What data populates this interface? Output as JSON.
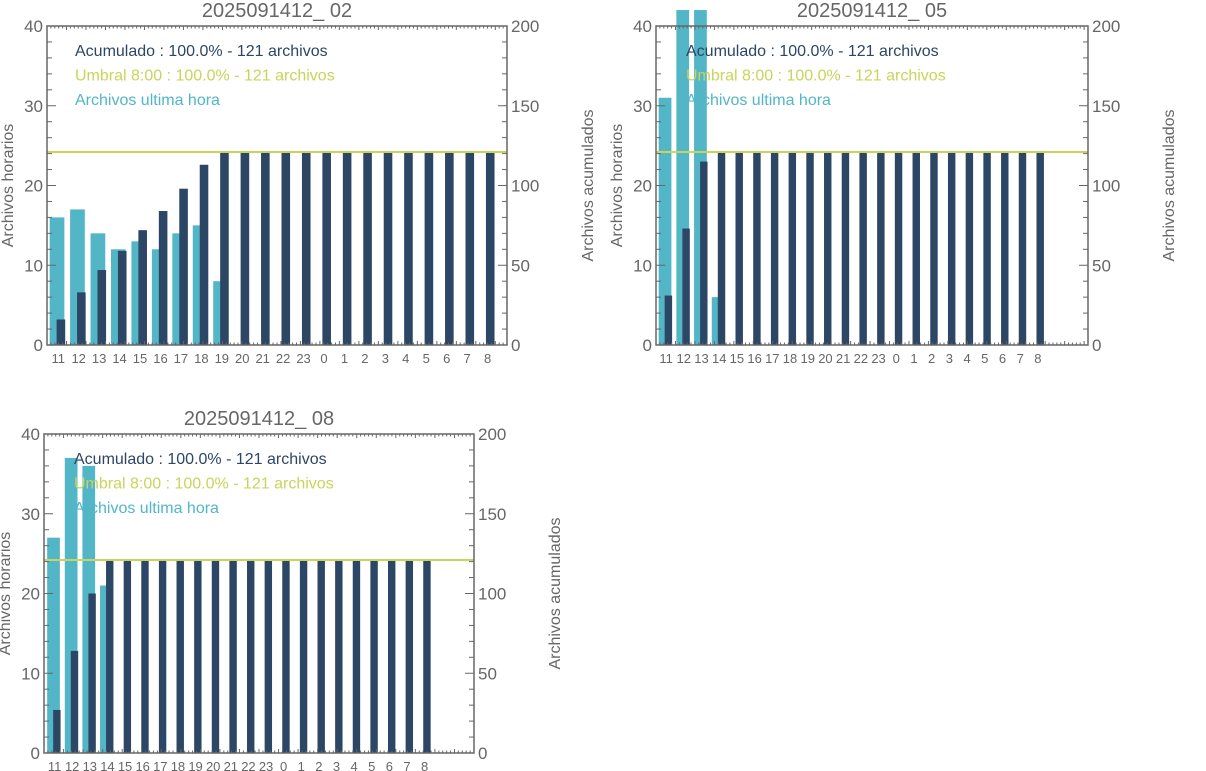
{
  "colors": {
    "cumulative": "#2c4665",
    "hourly": "#52b6c6",
    "threshold": "#c8d45a",
    "axis": "#666666"
  },
  "chart_data": [
    {
      "type": "bar",
      "title": "2025091412_ 02",
      "ylabel": "Archivos horarios",
      "y2label": "Archivos acumulados",
      "ylim": [
        0,
        40
      ],
      "y2lim": [
        0,
        200
      ],
      "yticks": [
        0,
        10,
        20,
        30,
        40
      ],
      "y2ticks": [
        0,
        50,
        100,
        150,
        200
      ],
      "categories": [
        "11",
        "12",
        "13",
        "14",
        "15",
        "16",
        "17",
        "18",
        "19",
        "20",
        "21",
        "22",
        "23",
        "0",
        "1",
        "2",
        "3",
        "4",
        "5",
        "6",
        "7",
        "8"
      ],
      "hourly": [
        16,
        17,
        14,
        12,
        13,
        12,
        14,
        15,
        8,
        0,
        0,
        0,
        0,
        0,
        0,
        0,
        0,
        0,
        0,
        0,
        0,
        0
      ],
      "cumulative": [
        16,
        33,
        47,
        59,
        72,
        84,
        98,
        113,
        121,
        121,
        121,
        121,
        121,
        121,
        121,
        121,
        121,
        121,
        121,
        121,
        121,
        121
      ],
      "threshold": 121,
      "legend": [
        "Acumulado : 100.0% - 121 archivos",
        "Umbral 8:00 : 100.0% - 121 archivos",
        "Archivos ultima hora"
      ],
      "legend_placement": "top-left"
    },
    {
      "type": "bar",
      "title": "2025091412_ 05",
      "ylabel": "Archivos horarios",
      "y2label": "Archivos acumulados",
      "ylim": [
        0,
        40
      ],
      "y2lim": [
        0,
        200
      ],
      "yticks": [
        0,
        10,
        20,
        30,
        40
      ],
      "y2ticks": [
        0,
        50,
        100,
        150,
        200
      ],
      "categories": [
        "11",
        "12",
        "13",
        "14",
        "15",
        "16",
        "17",
        "18",
        "19",
        "20",
        "21",
        "22",
        "23",
        "0",
        "1",
        "2",
        "3",
        "4",
        "5",
        "6",
        "7",
        "8"
      ],
      "hourly": [
        31,
        42,
        42,
        6,
        0,
        0,
        0,
        0,
        0,
        0,
        0,
        0,
        0,
        0,
        0,
        0,
        0,
        0,
        0,
        0,
        0,
        0
      ],
      "cumulative": [
        31,
        73,
        115,
        121,
        121,
        121,
        121,
        121,
        121,
        121,
        121,
        121,
        121,
        121,
        121,
        121,
        121,
        121,
        121,
        121,
        121,
        121
      ],
      "threshold": 121,
      "legend": [
        "Acumulado : 100.0% - 121 archivos",
        "Umbral 8:00 : 100.0% - 121 archivos",
        "Archivos ultima hora"
      ],
      "legend_placement": "top-left"
    },
    {
      "type": "bar",
      "title": "2025091412_ 08",
      "ylabel": "Archivos horarios",
      "y2label": "Archivos acumulados",
      "ylim": [
        0,
        40
      ],
      "y2lim": [
        0,
        200
      ],
      "yticks": [
        0,
        10,
        20,
        30,
        40
      ],
      "y2ticks": [
        0,
        50,
        100,
        150,
        200
      ],
      "categories": [
        "11",
        "12",
        "13",
        "14",
        "15",
        "16",
        "17",
        "18",
        "19",
        "20",
        "21",
        "22",
        "23",
        "0",
        "1",
        "2",
        "3",
        "4",
        "5",
        "6",
        "7",
        "8"
      ],
      "hourly": [
        27,
        37,
        36,
        21,
        0,
        0,
        0,
        0,
        0,
        0,
        0,
        0,
        0,
        0,
        0,
        0,
        0,
        0,
        0,
        0,
        0,
        0
      ],
      "cumulative": [
        27,
        64,
        100,
        121,
        121,
        121,
        121,
        121,
        121,
        121,
        121,
        121,
        121,
        121,
        121,
        121,
        121,
        121,
        121,
        121,
        121,
        121
      ],
      "threshold": 121,
      "legend": [
        "Acumulado : 100.0% - 121 archivos",
        "Umbral 8:00 : 100.0% - 121 archivos",
        "Archivos ultima hora"
      ],
      "legend_placement": "top-left"
    }
  ]
}
